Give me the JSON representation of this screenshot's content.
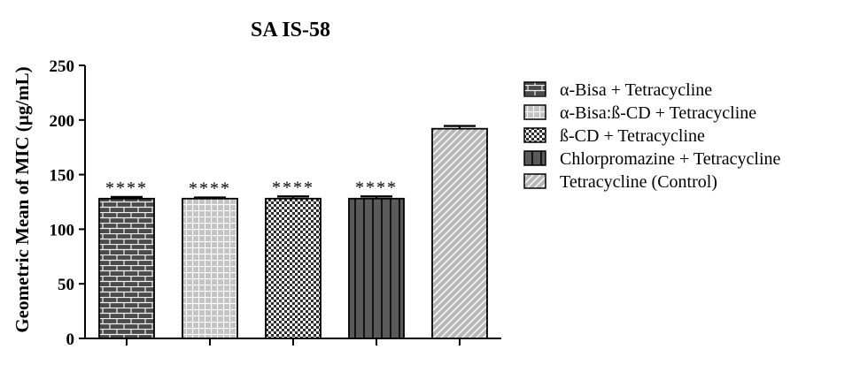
{
  "chart_data": {
    "type": "bar",
    "title": "SA IS-58",
    "xlabel": "",
    "ylabel": "Geometric Mean of MIC (µg/mL)",
    "ylim": [
      0,
      250
    ],
    "yticks": [
      0,
      50,
      100,
      150,
      200,
      250
    ],
    "grid": false,
    "legend_position": "right",
    "categories": [
      "α-Bisa + Tetracycline",
      "α-Bisa:ß-CD + Tetracycline",
      "ß-CD + Tetracycline",
      "Chlorpromazine + Tetracycline",
      "Tetracycline (Control)"
    ],
    "values": [
      128,
      128,
      128,
      128,
      192
    ],
    "errors": [
      1.5,
      1,
      2,
      2,
      2.5
    ],
    "annotations": [
      "****",
      "****",
      "****",
      "****",
      ""
    ],
    "patterns": [
      "brick",
      "grid",
      "checker",
      "vertical-stripes",
      "diagonal-stripes"
    ],
    "colors": {
      "brick": "#4a4a4a",
      "grid": "#c4c4c4",
      "checker": "#3a3a3a",
      "vertical-stripes": "#5a5a5a",
      "diagonal-stripes": "#b8b8b8"
    }
  }
}
